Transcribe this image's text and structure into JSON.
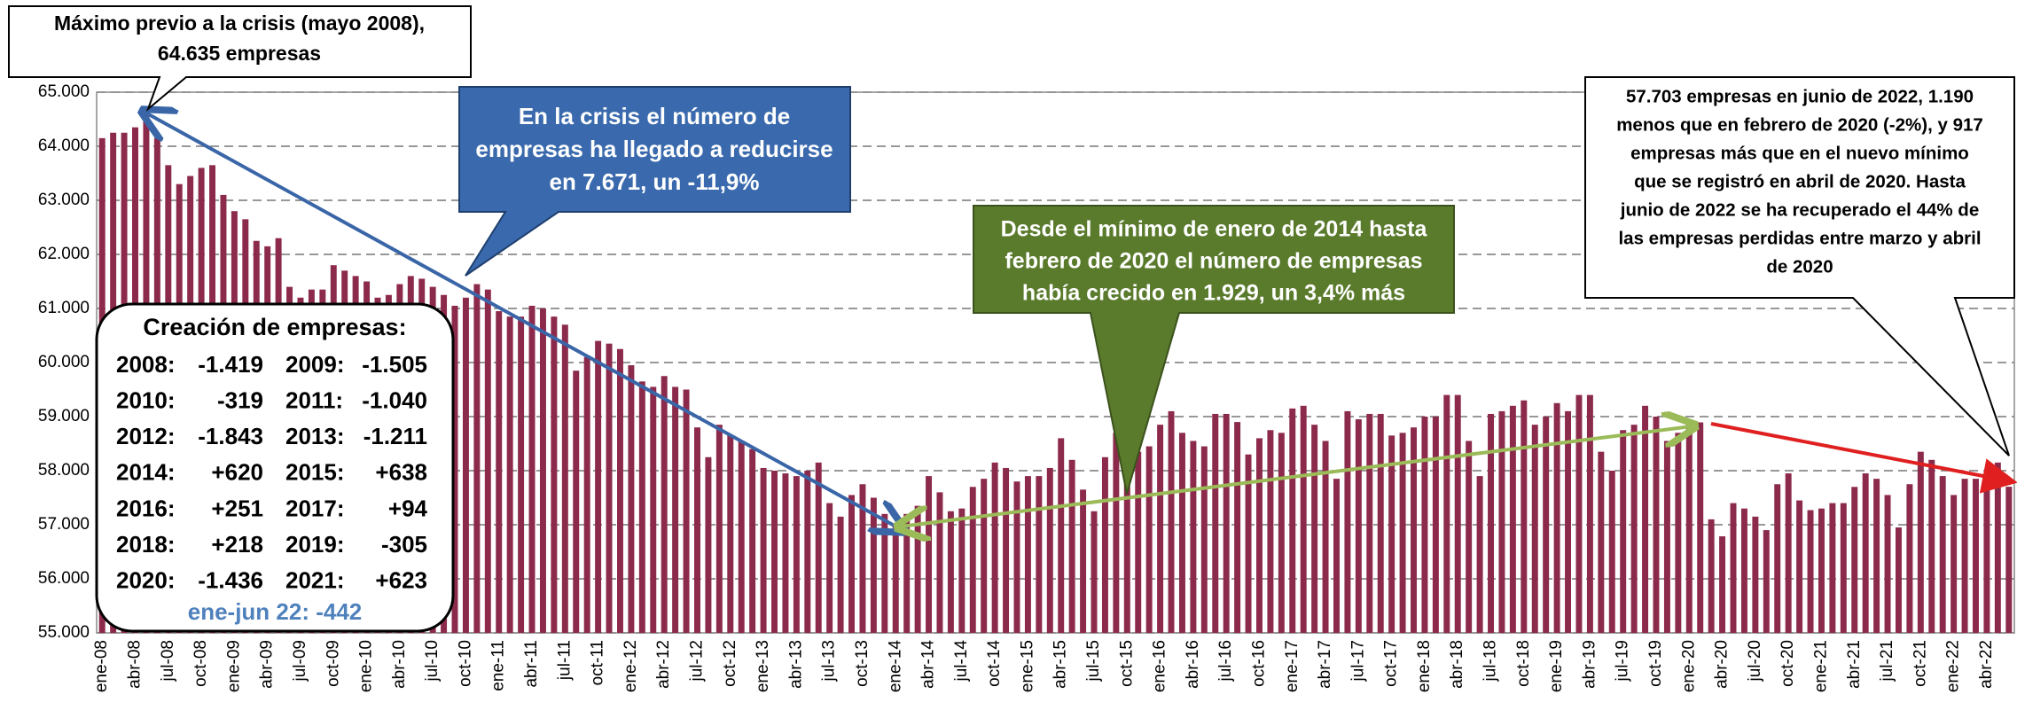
{
  "chart_data": {
    "type": "bar",
    "color": "#8c2a4c",
    "grid": true,
    "ylim": [
      55000,
      65000
    ],
    "yticks": [
      {
        "value": 55000,
        "label": "55.000"
      },
      {
        "value": 56000,
        "label": "56.000"
      },
      {
        "value": 57000,
        "label": "57.000"
      },
      {
        "value": 58000,
        "label": "58.000"
      },
      {
        "value": 59000,
        "label": "59.000"
      },
      {
        "value": 60000,
        "label": "60.000"
      },
      {
        "value": 61000,
        "label": "61.000"
      },
      {
        "value": 62000,
        "label": "62.000"
      },
      {
        "value": 63000,
        "label": "63.000"
      },
      {
        "value": 64000,
        "label": "64.000"
      },
      {
        "value": 65000,
        "label": "65.000"
      }
    ],
    "categories": [
      "ene-08",
      null,
      null,
      "abr-08",
      null,
      null,
      "jul-08",
      null,
      null,
      "oct-08",
      null,
      null,
      "ene-09",
      null,
      null,
      "abr-09",
      null,
      null,
      "jul-09",
      null,
      null,
      "oct-09",
      null,
      null,
      "ene-10",
      null,
      null,
      "abr-10",
      null,
      null,
      "jul-10",
      null,
      null,
      "oct-10",
      null,
      null,
      "ene-11",
      null,
      null,
      "abr-11",
      null,
      null,
      "jul-11",
      null,
      null,
      "oct-11",
      null,
      null,
      "ene-12",
      null,
      null,
      "abr-12",
      null,
      null,
      "jul-12",
      null,
      null,
      "oct-12",
      null,
      null,
      "ene-13",
      null,
      null,
      "abr-13",
      null,
      null,
      "jul-13",
      null,
      null,
      "oct-13",
      null,
      null,
      "ene-14",
      null,
      null,
      "abr-14",
      null,
      null,
      "jul-14",
      null,
      null,
      "oct-14",
      null,
      null,
      "ene-15",
      null,
      null,
      "abr-15",
      null,
      null,
      "jul-15",
      null,
      null,
      "oct-15",
      null,
      null,
      "ene-16",
      null,
      null,
      "abr-16",
      null,
      null,
      "jul-16",
      null,
      null,
      "oct-16",
      null,
      null,
      "ene-17",
      null,
      null,
      "abr-17",
      null,
      null,
      "jul-17",
      null,
      null,
      "oct-17",
      null,
      null,
      "ene-18",
      null,
      null,
      "abr-18",
      null,
      null,
      "jul-18",
      null,
      null,
      "oct-18",
      null,
      null,
      "ene-19",
      null,
      null,
      "abr-19",
      null,
      null,
      "jul-19",
      null,
      null,
      "oct-19",
      null,
      null,
      "ene-20",
      null,
      null,
      "abr-20",
      null,
      null,
      "jul-20",
      null,
      null,
      "oct-20",
      null,
      null,
      "ene-21",
      null,
      null,
      "abr-21",
      null,
      null,
      "jul-21",
      null,
      null,
      "oct-21",
      null,
      null,
      "ene-22",
      null,
      null,
      "abr-22",
      null,
      null
    ],
    "values": [
      64150,
      64250,
      64250,
      64350,
      64635,
      64150,
      63650,
      63300,
      63450,
      63600,
      63650,
      63100,
      62800,
      62650,
      62250,
      62150,
      62300,
      61400,
      61200,
      61350,
      61350,
      61800,
      61700,
      61600,
      61500,
      61200,
      61250,
      61450,
      61600,
      61550,
      61400,
      61250,
      61050,
      61200,
      61450,
      61350,
      60950,
      60850,
      60850,
      61050,
      61000,
      60850,
      60700,
      59850,
      60100,
      60400,
      60350,
      60250,
      59950,
      59650,
      59550,
      59750,
      59550,
      59500,
      58800,
      58250,
      58850,
      58650,
      58550,
      58400,
      58050,
      58000,
      57950,
      57900,
      58000,
      58150,
      57400,
      57150,
      57550,
      57750,
      57500,
      57200,
      56964,
      57200,
      57350,
      57900,
      57600,
      57250,
      57300,
      57700,
      57850,
      58150,
      58050,
      57800,
      57900,
      57900,
      58050,
      58600,
      58200,
      57650,
      57250,
      58250,
      58700,
      58400,
      58350,
      58450,
      58850,
      59100,
      58700,
      58550,
      58450,
      59050,
      59050,
      58900,
      58300,
      58600,
      58750,
      58700,
      59150,
      59200,
      58850,
      58550,
      57850,
      59100,
      58950,
      59050,
      59050,
      58650,
      58700,
      58800,
      59000,
      59000,
      59400,
      59400,
      58550,
      57900,
      59050,
      59100,
      59200,
      59300,
      58850,
      59000,
      59250,
      59100,
      59400,
      59400,
      58350,
      58000,
      58750,
      58850,
      59200,
      59000,
      58550,
      58700,
      58900,
      58893,
      57100,
      56786,
      57400,
      57300,
      57150,
      56900,
      57750,
      57950,
      57450,
      57270,
      57300,
      57400,
      57400,
      57700,
      57950,
      57850,
      57550,
      56950,
      57750,
      58350,
      58200,
      57900,
      57550,
      57850,
      57850,
      57850,
      58150,
      57703
    ],
    "annotations": {
      "max": [
        "Máximo previo a la crisis (mayo 2008),",
        "64.635 empresas"
      ],
      "crisis": [
        "En la crisis el número de",
        "empresas ha llegado a reducirse",
        "en 7.671, un -11,9%"
      ],
      "recovery": [
        "Desde el mínimo de enero de 2014 hasta",
        "febrero de 2020 el número de empresas",
        "había crecido en 1.929, un 3,4% más"
      ],
      "latest": [
        "57.703 empresas en junio de 2022, 1.190",
        "menos que en febrero de 2020 (-2%), y 917",
        "empresas más que en el nuevo mínimo",
        "que se registró en abril de 2020. Hasta",
        "junio de 2022 se ha recuperado el 44% de",
        "las empresas perdidas entre marzo y abril",
        "de 2020"
      ]
    },
    "summary": {
      "title": "Creación de empresas:",
      "rows": [
        [
          "2008:",
          "-1.419",
          "2009:",
          "-1.505"
        ],
        [
          "2010:",
          "-319",
          "2011:",
          "-1.040"
        ],
        [
          "2012:",
          "-1.843",
          "2013:",
          "-1.211"
        ],
        [
          "2014:",
          "+620",
          "2015:",
          "+638"
        ],
        [
          "2016:",
          "+251",
          "2017:",
          "+94"
        ],
        [
          "2018:",
          "+218",
          "2019:",
          "-305"
        ],
        [
          "2020:",
          "-1.436",
          "2021:",
          "+623"
        ]
      ],
      "footer": "ene-jun 22: -442"
    }
  }
}
